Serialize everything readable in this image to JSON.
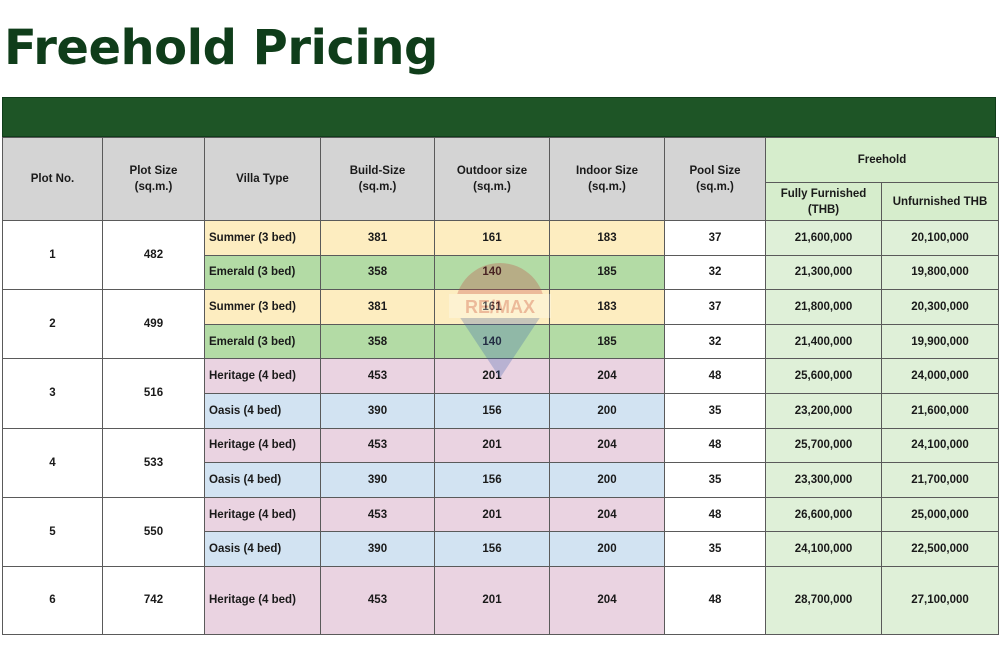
{
  "title": "Freehold Pricing",
  "watermark": "RE/MAX",
  "colors": {
    "banner": "#1e5526",
    "title": "#0f3d1a",
    "summer": "#fdedc0",
    "emerald": "#b3dba5",
    "heritage": "#ead3e1",
    "oasis": "#d2e3f2",
    "freehold": "#dff0d8"
  },
  "headers": {
    "plot_no": "Plot No.",
    "plot_size": "Plot Size\n(sq.m.)",
    "villa_type": "Villa Type",
    "build_size": "Build-Size\n(sq.m.)",
    "outdoor_size": "Outdoor size\n(sq.m.)",
    "indoor_size": "Indoor Size\n(sq.m.)",
    "pool_size": "Pool Size\n(sq.m.)",
    "freehold": "Freehold",
    "fully_furnished": "Fully Furnished\n(THB)",
    "unfurnished": "Unfurnished THB"
  },
  "plots": [
    {
      "no": "1",
      "size": "482",
      "villas": [
        {
          "type": "Summer (3 bed)",
          "style": "summer",
          "build": "381",
          "outdoor": "161",
          "indoor": "183",
          "pool": "37",
          "furnished": "21,600,000",
          "unfurnished": "20,100,000"
        },
        {
          "type": "Emerald (3 bed)",
          "style": "emerald",
          "build": "358",
          "outdoor": "140",
          "indoor": "185",
          "pool": "32",
          "furnished": "21,300,000",
          "unfurnished": "19,800,000"
        }
      ]
    },
    {
      "no": "2",
      "size": "499",
      "villas": [
        {
          "type": "Summer (3 bed)",
          "style": "summer",
          "build": "381",
          "outdoor": "161",
          "indoor": "183",
          "pool": "37",
          "furnished": "21,800,000",
          "unfurnished": "20,300,000"
        },
        {
          "type": "Emerald (3 bed)",
          "style": "emerald",
          "build": "358",
          "outdoor": "140",
          "indoor": "185",
          "pool": "32",
          "furnished": "21,400,000",
          "unfurnished": "19,900,000"
        }
      ]
    },
    {
      "no": "3",
      "size": "516",
      "villas": [
        {
          "type": "Heritage (4 bed)",
          "style": "heritage",
          "build": "453",
          "outdoor": "201",
          "indoor": "204",
          "pool": "48",
          "furnished": "25,600,000",
          "unfurnished": "24,000,000"
        },
        {
          "type": "Oasis (4 bed)",
          "style": "oasis",
          "build": "390",
          "outdoor": "156",
          "indoor": "200",
          "pool": "35",
          "furnished": "23,200,000",
          "unfurnished": "21,600,000"
        }
      ]
    },
    {
      "no": "4",
      "size": "533",
      "villas": [
        {
          "type": "Heritage (4 bed)",
          "style": "heritage",
          "build": "453",
          "outdoor": "201",
          "indoor": "204",
          "pool": "48",
          "furnished": "25,700,000",
          "unfurnished": "24,100,000"
        },
        {
          "type": "Oasis (4 bed)",
          "style": "oasis",
          "build": "390",
          "outdoor": "156",
          "indoor": "200",
          "pool": "35",
          "furnished": "23,300,000",
          "unfurnished": "21,700,000"
        }
      ]
    },
    {
      "no": "5",
      "size": "550",
      "villas": [
        {
          "type": "Heritage (4 bed)",
          "style": "heritage",
          "build": "453",
          "outdoor": "201",
          "indoor": "204",
          "pool": "48",
          "furnished": "26,600,000",
          "unfurnished": "25,000,000"
        },
        {
          "type": "Oasis (4 bed)",
          "style": "oasis",
          "build": "390",
          "outdoor": "156",
          "indoor": "200",
          "pool": "35",
          "furnished": "24,100,000",
          "unfurnished": "22,500,000"
        }
      ]
    },
    {
      "no": "6",
      "size": "742",
      "villas": [
        {
          "type": "Heritage (4 bed)",
          "style": "heritage",
          "build": "453",
          "outdoor": "201",
          "indoor": "204",
          "pool": "48",
          "furnished": "28,700,000",
          "unfurnished": "27,100,000"
        }
      ]
    }
  ]
}
